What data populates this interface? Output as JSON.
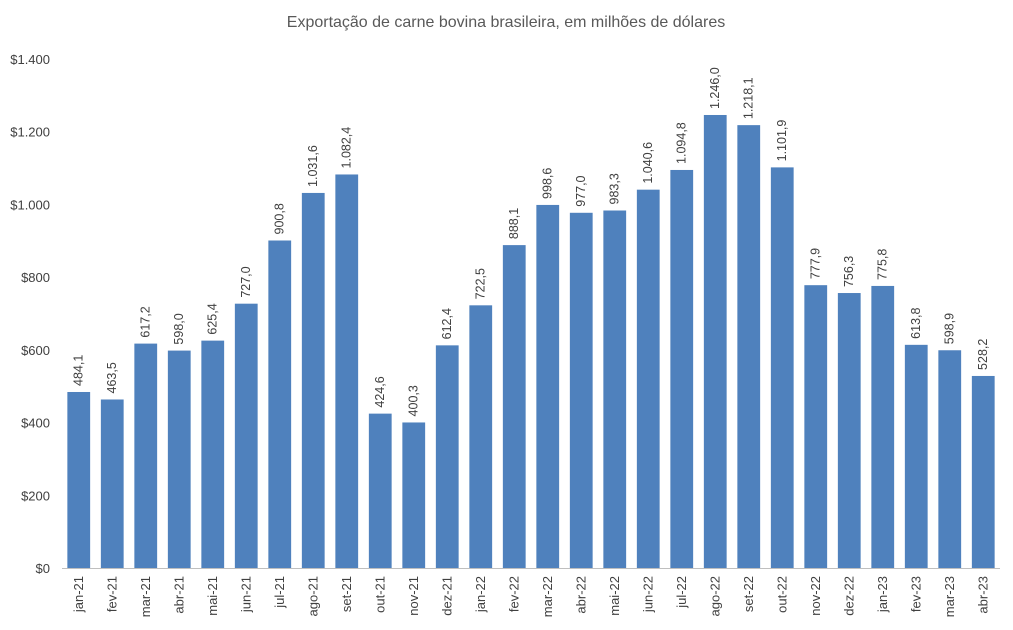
{
  "chart_data": {
    "type": "bar",
    "title": "Exportação de carne bovina brasileira, em milhões de dólares",
    "xlabel": "",
    "ylabel": "",
    "ylim": [
      0,
      1400
    ],
    "grid": false,
    "legend": "none",
    "bar_color": "#4f81bd",
    "y_ticks": [
      0,
      200,
      400,
      600,
      800,
      1000,
      1200,
      1400
    ],
    "y_tick_labels": [
      "$0",
      "$200",
      "$400",
      "$600",
      "$800",
      "$1.000",
      "$1.200",
      "$1.400"
    ],
    "categories": [
      "jan-21",
      "fev-21",
      "mar-21",
      "abr-21",
      "mai-21",
      "jun-21",
      "jul-21",
      "ago-21",
      "set-21",
      "out-21",
      "nov-21",
      "dez-21",
      "jan-22",
      "fev-22",
      "mar-22",
      "abr-22",
      "mai-22",
      "jun-22",
      "jul-22",
      "ago-22",
      "set-22",
      "out-22",
      "nov-22",
      "dez-22",
      "jan-23",
      "fev-23",
      "mar-23",
      "abr-23"
    ],
    "values": [
      484.1,
      463.5,
      617.2,
      598.0,
      625.4,
      727.0,
      900.8,
      1031.6,
      1082.4,
      424.6,
      400.3,
      612.4,
      722.5,
      888.1,
      998.6,
      977.0,
      983.3,
      1040.6,
      1094.8,
      1246.0,
      1218.1,
      1101.9,
      777.9,
      756.3,
      775.8,
      613.8,
      598.9,
      528.2
    ],
    "data_labels": [
      "484,1",
      "463,5",
      "617,2",
      "598,0",
      "625,4",
      "727,0",
      "900,8",
      "1.031,6",
      "1.082,4",
      "424,6",
      "400,3",
      "612,4",
      "722,5",
      "888,1",
      "998,6",
      "977,0",
      "983,3",
      "1.040,6",
      "1.094,8",
      "1.246,0",
      "1.218,1",
      "1.101,9",
      "777,9",
      "756,3",
      "775,8",
      "613,8",
      "598,9",
      "528,2"
    ]
  }
}
